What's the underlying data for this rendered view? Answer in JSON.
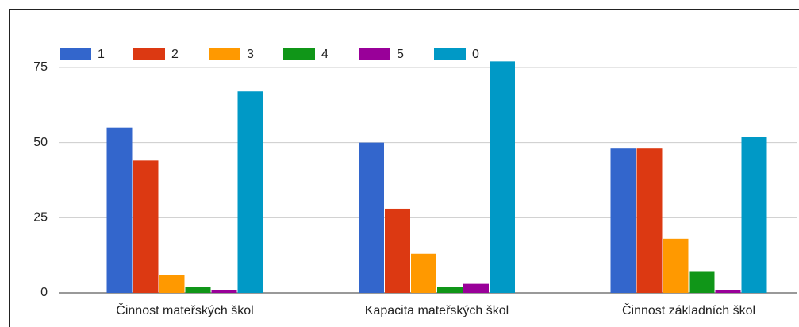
{
  "chart_data": {
    "type": "bar",
    "categories": [
      "Činnost mateřských škol",
      "Kapacita mateřských škol",
      "Činnost základních škol"
    ],
    "series": [
      {
        "name": "1",
        "color": "#3366cc",
        "values": [
          55,
          50,
          48
        ]
      },
      {
        "name": "2",
        "color": "#dc3912",
        "values": [
          44,
          28,
          48
        ]
      },
      {
        "name": "3",
        "color": "#ff9900",
        "values": [
          6,
          13,
          18
        ]
      },
      {
        "name": "4",
        "color": "#109618",
        "values": [
          2,
          2,
          7
        ]
      },
      {
        "name": "5",
        "color": "#990099",
        "values": [
          1,
          3,
          1
        ]
      },
      {
        "name": "0",
        "color": "#0099c6",
        "values": [
          67,
          77,
          52
        ]
      }
    ],
    "ylim": [
      0,
      80
    ],
    "yticks": [
      0,
      25,
      50,
      75
    ],
    "grid": true,
    "legend": "top"
  }
}
